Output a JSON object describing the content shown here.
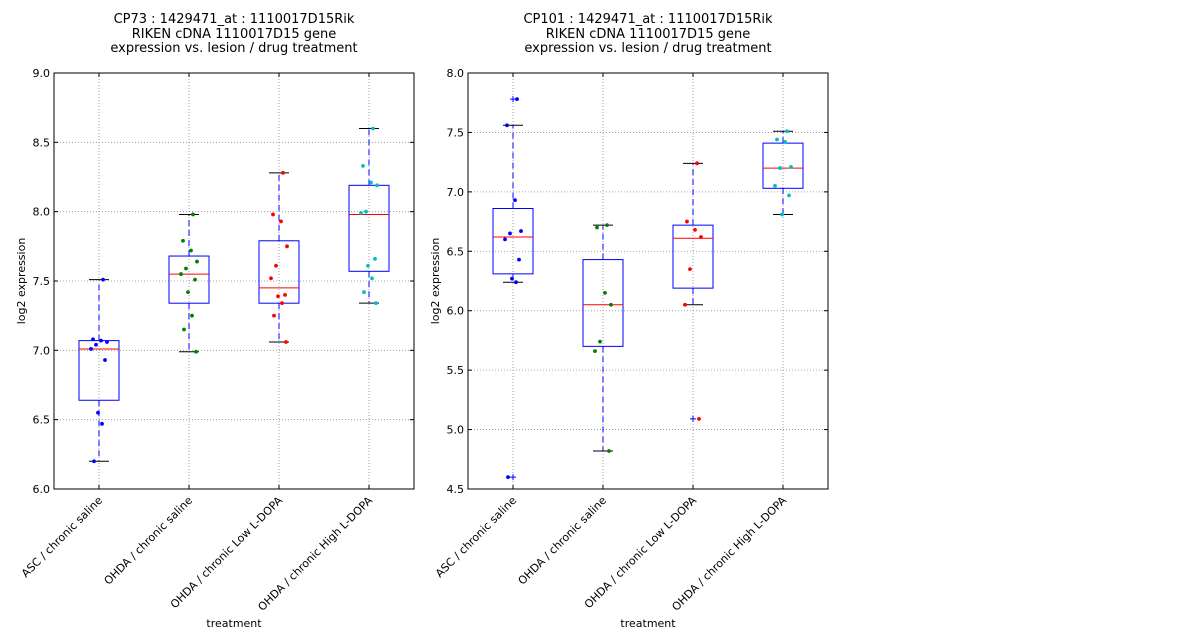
{
  "chart_data": [
    {
      "type": "boxplot",
      "title": [
        "CP73 : 1429471_at : 1110017D15Rik",
        "RIKEN cDNA 1110017D15 gene",
        "expression vs. lesion / drug treatment"
      ],
      "xlabel": "treatment",
      "ylabel": "log2 expression",
      "ylim": [
        6.0,
        9.0
      ],
      "yticks": [
        "6.0",
        "6.5",
        "7.0",
        "7.5",
        "8.0",
        "8.5",
        "9.0"
      ],
      "grid": true,
      "categories": [
        "ASC / chronic saline",
        "OHDA / chronic saline",
        "OHDA / chronic Low L-DOPA",
        "OHDA / chronic High L-DOPA"
      ],
      "colors": [
        "#0000ff",
        "#008000",
        "#ff0000",
        "#00bfbf"
      ],
      "boxes": [
        {
          "whislo": 6.2,
          "q1": 6.64,
          "med": 7.01,
          "q3": 7.07,
          "whishi": 7.51,
          "fliers": []
        },
        {
          "whislo": 6.99,
          "q1": 7.34,
          "med": 7.55,
          "q3": 7.68,
          "whishi": 7.98,
          "fliers": []
        },
        {
          "whislo": 7.06,
          "q1": 7.34,
          "med": 7.45,
          "q3": 7.79,
          "whishi": 8.28,
          "fliers": []
        },
        {
          "whislo": 7.34,
          "q1": 7.57,
          "med": 7.98,
          "q3": 8.19,
          "whishi": 8.6,
          "fliers": []
        }
      ],
      "points": [
        [
          7.51,
          7.08,
          7.07,
          7.06,
          7.04,
          7.01,
          6.93,
          6.55,
          6.47,
          6.2
        ],
        [
          7.98,
          7.79,
          7.72,
          7.64,
          7.59,
          7.55,
          7.51,
          7.42,
          7.25,
          7.15,
          6.99
        ],
        [
          8.28,
          7.98,
          7.93,
          7.75,
          7.61,
          7.52,
          7.4,
          7.39,
          7.34,
          7.25,
          7.06
        ],
        [
          8.6,
          8.33,
          8.21,
          8.19,
          8.0,
          7.99,
          7.66,
          7.61,
          7.52,
          7.42,
          7.34
        ]
      ]
    },
    {
      "type": "boxplot",
      "title": [
        "CP101 : 1429471_at : 1110017D15Rik",
        "RIKEN cDNA 1110017D15 gene",
        "expression vs. lesion / drug treatment"
      ],
      "xlabel": "treatment",
      "ylabel": "log2 expression",
      "ylim": [
        4.5,
        8.0
      ],
      "yticks": [
        "4.5",
        "5.0",
        "5.5",
        "6.0",
        "6.5",
        "7.0",
        "7.5",
        "8.0"
      ],
      "grid": true,
      "categories": [
        "ASC / chronic saline",
        "OHDA / chronic saline",
        "OHDA / chronic Low L-DOPA",
        "OHDA / chronic High L-DOPA"
      ],
      "colors": [
        "#0000ff",
        "#008000",
        "#ff0000",
        "#00bfbf"
      ],
      "boxes": [
        {
          "whislo": 6.24,
          "q1": 6.31,
          "med": 6.62,
          "q3": 6.86,
          "whishi": 7.56,
          "fliers": [
            7.78,
            4.6
          ]
        },
        {
          "whislo": 4.82,
          "q1": 5.7,
          "med": 6.05,
          "q3": 6.43,
          "whishi": 6.72,
          "fliers": []
        },
        {
          "whislo": 6.05,
          "q1": 6.19,
          "med": 6.61,
          "q3": 6.72,
          "whishi": 7.24,
          "fliers": [
            5.09
          ]
        },
        {
          "whislo": 6.81,
          "q1": 7.03,
          "med": 7.2,
          "q3": 7.41,
          "whishi": 7.51,
          "fliers": []
        }
      ],
      "points": [
        [
          7.78,
          7.56,
          6.93,
          6.67,
          6.65,
          6.6,
          6.43,
          6.27,
          6.24,
          4.6
        ],
        [
          6.72,
          6.7,
          6.15,
          6.05,
          5.74,
          5.66,
          4.82
        ],
        [
          7.24,
          6.75,
          6.68,
          6.62,
          6.35,
          6.05,
          5.09
        ],
        [
          7.51,
          7.44,
          7.42,
          7.21,
          7.2,
          7.05,
          6.97,
          6.81
        ]
      ]
    }
  ]
}
